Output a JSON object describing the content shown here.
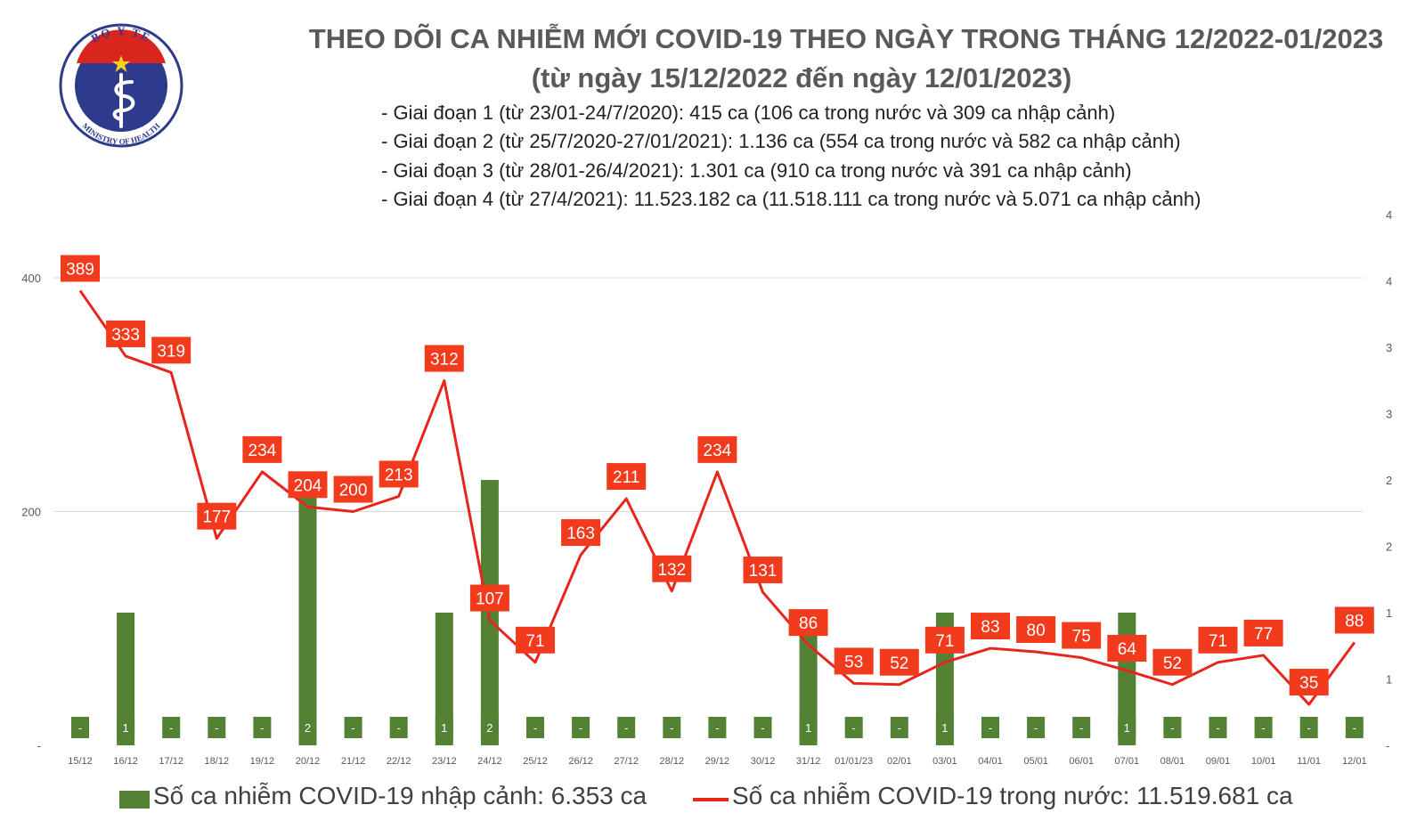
{
  "header": {
    "title": "THEO DÕI CA NHIỄM MỚI COVID-19 THEO NGÀY TRONG THÁNG 12/2022-01/2023",
    "subtitle": "(từ ngày 15/12/2022 đến ngày 12/01/2023)",
    "phases": [
      "- Giai đoạn 1 (từ 23/01-24/7/2020): 415 ca (106 ca trong nước và 309 ca nhập cảnh)",
      "- Giai đoạn 2 (từ 25/7/2020-27/01/2021): 1.136 ca (554 ca trong nước và 582 ca nhập cảnh)",
      "- Giai đoạn 3 (từ 28/01-26/4/2021): 1.301 ca (910 ca trong nước và 391 ca nhập cảnh)",
      "- Giai đoạn 4 (từ 27/4/2021): 11.523.182 ca (11.518.111 ca trong nước và 5.071 ca nhập cảnh)"
    ]
  },
  "logo": {
    "top_text": "BỘ Y TẾ",
    "bottom_text": "MINISTRY OF HEALTH",
    "icon": "caduceus-icon"
  },
  "legend": {
    "import_label": "Số ca nhiễm COVID-19 nhập cảnh: 6.353 ca",
    "domestic_label": "Số ca nhiễm COVID-19 trong nước: 11.519.681 ca"
  },
  "colors": {
    "bar": "#548235",
    "line": "#e8251c",
    "label_box": "#f23a1d",
    "grid": "#d9d9d9",
    "axis_text": "#595959"
  },
  "chart_data": {
    "type": "bar+line",
    "categories": [
      "15/12",
      "16/12",
      "17/12",
      "18/12",
      "19/12",
      "20/12",
      "21/12",
      "22/12",
      "23/12",
      "24/12",
      "25/12",
      "26/12",
      "27/12",
      "28/12",
      "29/12",
      "30/12",
      "31/12",
      "01/01/23",
      "02/01",
      "03/01",
      "04/01",
      "05/01",
      "06/01",
      "07/01",
      "08/01",
      "09/01",
      "10/01",
      "11/01",
      "12/01"
    ],
    "series": [
      {
        "name": "Số ca nhiễm COVID-19 nhập cảnh: 6.353 ca",
        "type": "bar",
        "axis": "right",
        "values": [
          0,
          1,
          0,
          0,
          0,
          2,
          0,
          0,
          1,
          2,
          0,
          0,
          0,
          0,
          0,
          0,
          1,
          0,
          0,
          1,
          0,
          0,
          0,
          1,
          0,
          0,
          0,
          0,
          0
        ],
        "labels": [
          "-",
          "1",
          "-",
          "-",
          "-",
          "2",
          "-",
          "-",
          "1",
          "2",
          "-",
          "-",
          "-",
          "-",
          "-",
          "-",
          "1",
          "-",
          "-",
          "1",
          "-",
          "-",
          "-",
          "1",
          "-",
          "-",
          "-",
          "-",
          "-"
        ]
      },
      {
        "name": "Số ca nhiễm COVID-19 trong nước: 11.519.681 ca",
        "type": "line",
        "axis": "left",
        "values": [
          389,
          333,
          319,
          177,
          234,
          204,
          200,
          213,
          312,
          107,
          71,
          163,
          211,
          132,
          234,
          131,
          86,
          53,
          52,
          71,
          83,
          80,
          75,
          64,
          52,
          71,
          77,
          35,
          88
        ]
      }
    ],
    "left_axis": {
      "range": [
        0,
        400
      ],
      "ticks": [
        "-",
        "200",
        "400"
      ]
    },
    "right_axis": {
      "range": [
        0,
        4
      ],
      "ticks": [
        "-",
        "1",
        "1",
        "2",
        "2",
        "3",
        "3",
        "4",
        "4"
      ]
    },
    "grid": true,
    "legend_position": "bottom"
  }
}
